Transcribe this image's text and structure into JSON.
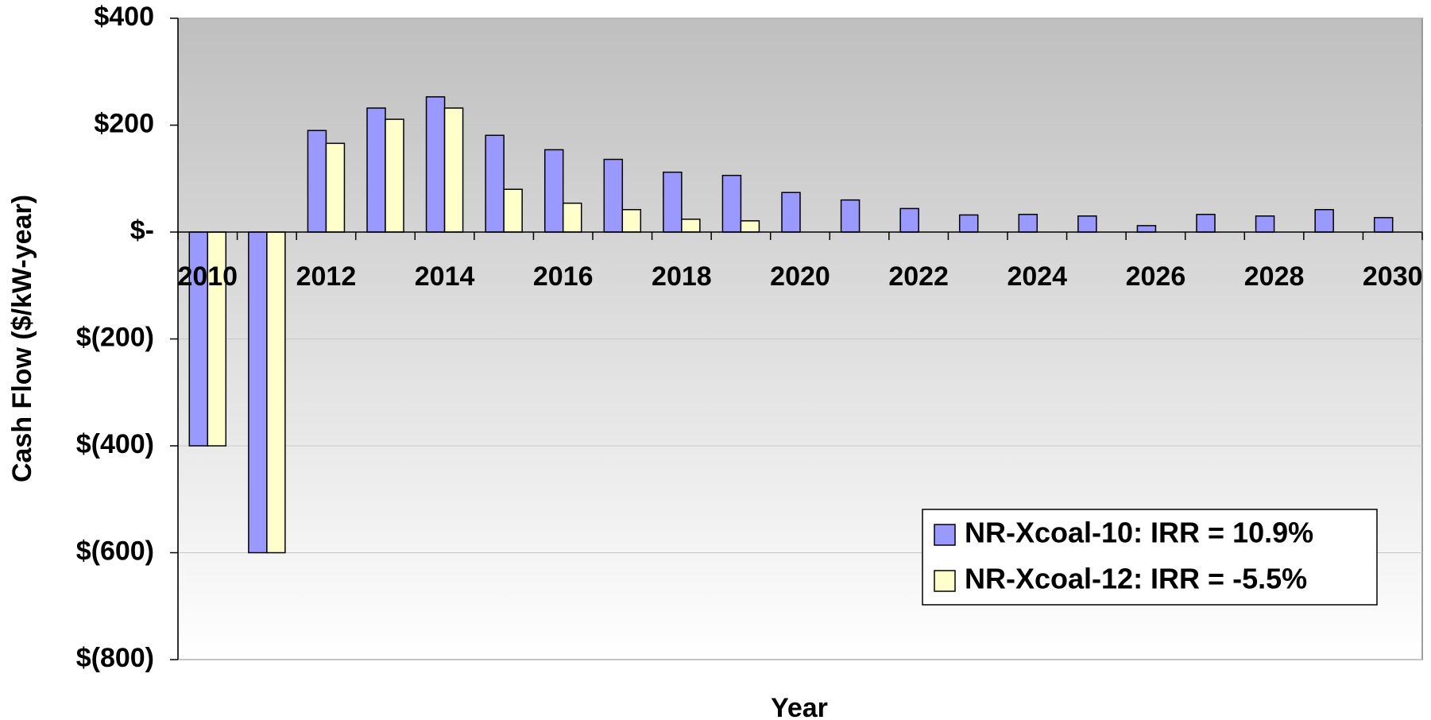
{
  "chart_data": {
    "type": "bar",
    "x_label": "Year",
    "y_label": "Cash Flow ($/kW-year)",
    "categories": [
      "2010",
      null,
      "2012",
      null,
      "2014",
      null,
      "2016",
      null,
      "2018",
      null,
      "2020",
      null,
      "2022",
      null,
      "2024",
      null,
      "2026",
      null,
      "2028",
      null,
      "2030"
    ],
    "series": [
      {
        "name": "NR-Xcoal-10: IRR = 10.9%",
        "color": "#9999ff",
        "values": [
          -400,
          -600,
          190,
          232,
          253,
          181,
          154,
          136,
          112,
          106,
          74,
          60,
          44,
          32,
          33,
          30,
          12,
          33,
          30,
          42,
          27
        ]
      },
      {
        "name": "NR-Xcoal-12: IRR = -5.5%",
        "color": "#ffffcc",
        "values": [
          -400,
          -600,
          166,
          211,
          232,
          80,
          54,
          42,
          24,
          21,
          null,
          null,
          null,
          null,
          null,
          null,
          null,
          null,
          null,
          null,
          null
        ]
      }
    ],
    "ylim": [
      -800,
      400
    ],
    "yticks": [
      {
        "value": 400,
        "label": "$400"
      },
      {
        "value": 200,
        "label": "$200"
      },
      {
        "value": 0,
        "label": "$-"
      },
      {
        "value": -200,
        "label": "$(200)"
      },
      {
        "value": -400,
        "label": "$(400)"
      },
      {
        "value": -600,
        "label": "$(600)"
      },
      {
        "value": -800,
        "label": "$(800)"
      }
    ],
    "grid": true,
    "legend": "lower right"
  }
}
